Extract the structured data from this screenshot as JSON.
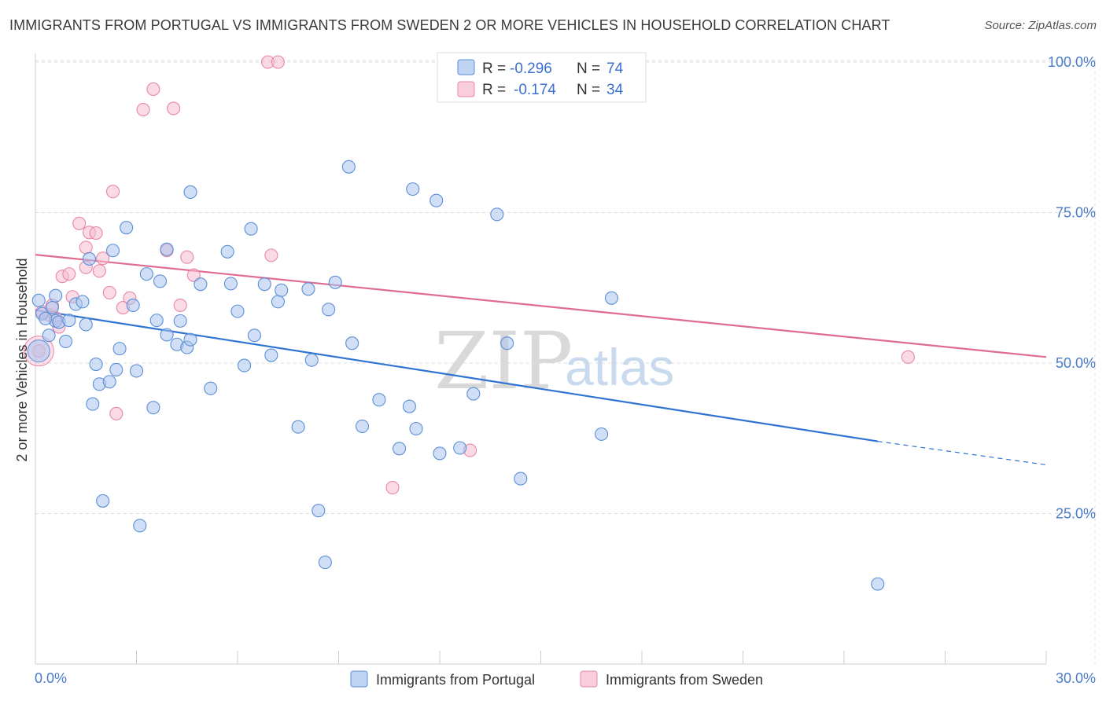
{
  "title": "IMMIGRANTS FROM PORTUGAL VS IMMIGRANTS FROM SWEDEN 2 OR MORE VEHICLES IN HOUSEHOLD CORRELATION CHART",
  "source": "Source: ZipAtlas.com",
  "watermark": {
    "zip": "ZIP",
    "atlas": "atlas"
  },
  "colors": {
    "portugal_fill": "#a9c4ee",
    "portugal_stroke": "#5b8fd6",
    "portugal_line": "#2f73d2",
    "sweden_fill": "#f6bcd0",
    "sweden_stroke": "#e887a8",
    "sweden_line": "#e06b93",
    "tick_label": "#4a7cc8",
    "grid": "#dddddd"
  },
  "legend_top": {
    "portugal": {
      "r_label": "R =",
      "r_value": "-0.296",
      "n_label": "N =",
      "n_value": "74"
    },
    "sweden": {
      "r_label": "R =",
      "r_value": "-0.174",
      "n_label": "N =",
      "n_value": "34"
    }
  },
  "chart_data": {
    "type": "scatter",
    "title": "IMMIGRANTS FROM PORTUGAL VS IMMIGRANTS FROM SWEDEN 2 OR MORE VEHICLES IN HOUSEHOLD CORRELATION CHART",
    "xlabel": "",
    "ylabel": "2 or more Vehicles in Household",
    "xlim": [
      0,
      30
    ],
    "ylim": [
      0,
      105
    ],
    "x_tick_labels": [
      "0.0%",
      "30.0%"
    ],
    "y_tick_labels": [
      "25.0%",
      "50.0%",
      "75.0%",
      "100.0%"
    ],
    "y_ticks": [
      25,
      50,
      75,
      100
    ],
    "grid": true,
    "legend_position": "bottom",
    "series": [
      {
        "name": "Immigrants from Portugal",
        "points": [
          [
            0.2,
            58.2
          ],
          [
            0.4,
            54.6
          ],
          [
            0.5,
            59.2
          ],
          [
            0.6,
            57.0
          ],
          [
            0.6,
            61.2
          ],
          [
            0.7,
            56.8
          ],
          [
            0.9,
            53.6
          ],
          [
            1.0,
            57.1
          ],
          [
            1.2,
            59.8
          ],
          [
            1.4,
            60.2
          ],
          [
            1.5,
            56.4
          ],
          [
            1.6,
            67.3
          ],
          [
            1.7,
            43.2
          ],
          [
            1.8,
            49.8
          ],
          [
            1.9,
            46.5
          ],
          [
            2.0,
            27.1
          ],
          [
            2.2,
            46.9
          ],
          [
            2.3,
            68.7
          ],
          [
            2.4,
            48.9
          ],
          [
            2.5,
            52.4
          ],
          [
            2.7,
            72.5
          ],
          [
            2.9,
            59.6
          ],
          [
            3.0,
            48.7
          ],
          [
            3.1,
            23.0
          ],
          [
            3.3,
            64.8
          ],
          [
            3.5,
            42.6
          ],
          [
            3.6,
            57.1
          ],
          [
            3.7,
            63.6
          ],
          [
            3.9,
            54.7
          ],
          [
            3.9,
            68.9
          ],
          [
            4.2,
            53.1
          ],
          [
            4.3,
            57.0
          ],
          [
            4.5,
            52.6
          ],
          [
            4.6,
            53.9
          ],
          [
            4.6,
            78.4
          ],
          [
            4.9,
            63.1
          ],
          [
            5.2,
            45.8
          ],
          [
            5.7,
            68.5
          ],
          [
            5.8,
            63.2
          ],
          [
            6.0,
            58.6
          ],
          [
            6.2,
            49.6
          ],
          [
            6.4,
            72.3
          ],
          [
            6.5,
            54.6
          ],
          [
            6.8,
            63.1
          ],
          [
            7.0,
            51.3
          ],
          [
            7.2,
            60.2
          ],
          [
            7.3,
            62.1
          ],
          [
            7.8,
            39.4
          ],
          [
            8.1,
            62.3
          ],
          [
            8.2,
            50.5
          ],
          [
            8.4,
            25.5
          ],
          [
            8.6,
            16.9
          ],
          [
            8.7,
            58.9
          ],
          [
            8.9,
            63.4
          ],
          [
            9.3,
            82.6
          ],
          [
            9.4,
            53.3
          ],
          [
            9.7,
            39.5
          ],
          [
            10.2,
            43.9
          ],
          [
            10.8,
            35.8
          ],
          [
            11.1,
            42.8
          ],
          [
            11.2,
            78.9
          ],
          [
            11.3,
            39.1
          ],
          [
            11.9,
            77.0
          ],
          [
            12.0,
            35.0
          ],
          [
            12.6,
            35.9
          ],
          [
            13.0,
            44.9
          ],
          [
            13.7,
            74.7
          ],
          [
            14.0,
            53.3
          ],
          [
            14.4,
            30.8
          ],
          [
            16.8,
            38.2
          ],
          [
            17.1,
            60.8
          ],
          [
            25.0,
            13.3
          ],
          [
            0.1,
            60.4
          ],
          [
            0.3,
            57.4
          ]
        ]
      },
      {
        "name": "Immigrants from Sweden",
        "points": [
          [
            0.1,
            52.0
          ],
          [
            0.4,
            58.0
          ],
          [
            0.5,
            59.6
          ],
          [
            0.6,
            57.5
          ],
          [
            0.7,
            56.0
          ],
          [
            0.8,
            64.4
          ],
          [
            1.0,
            64.8
          ],
          [
            1.1,
            61.0
          ],
          [
            1.3,
            73.2
          ],
          [
            1.5,
            65.9
          ],
          [
            1.5,
            69.2
          ],
          [
            1.6,
            71.7
          ],
          [
            1.8,
            71.6
          ],
          [
            1.9,
            65.3
          ],
          [
            2.0,
            67.4
          ],
          [
            2.2,
            61.7
          ],
          [
            2.3,
            78.5
          ],
          [
            2.4,
            41.6
          ],
          [
            2.6,
            59.2
          ],
          [
            2.8,
            60.8
          ],
          [
            3.2,
            92.1
          ],
          [
            3.5,
            95.5
          ],
          [
            3.9,
            68.7
          ],
          [
            4.1,
            92.3
          ],
          [
            4.3,
            59.6
          ],
          [
            4.5,
            67.6
          ],
          [
            4.7,
            64.6
          ],
          [
            6.9,
            100.0
          ],
          [
            7.2,
            100.0
          ],
          [
            7.0,
            67.9
          ],
          [
            10.6,
            29.3
          ],
          [
            12.9,
            35.5
          ],
          [
            25.9,
            51.0
          ],
          [
            0.2,
            58.5
          ]
        ]
      }
    ],
    "trend_lines": [
      {
        "name": "Immigrants from Portugal",
        "x_start": 0,
        "y_start": 58.8,
        "x_solid_end": 25.0,
        "y_solid_end": 37.0,
        "x_end": 30,
        "y_end": 33.1
      },
      {
        "name": "Immigrants from Sweden",
        "x_start": 0,
        "y_start": 68.0,
        "x_end": 30,
        "y_end": 51.0
      }
    ]
  }
}
